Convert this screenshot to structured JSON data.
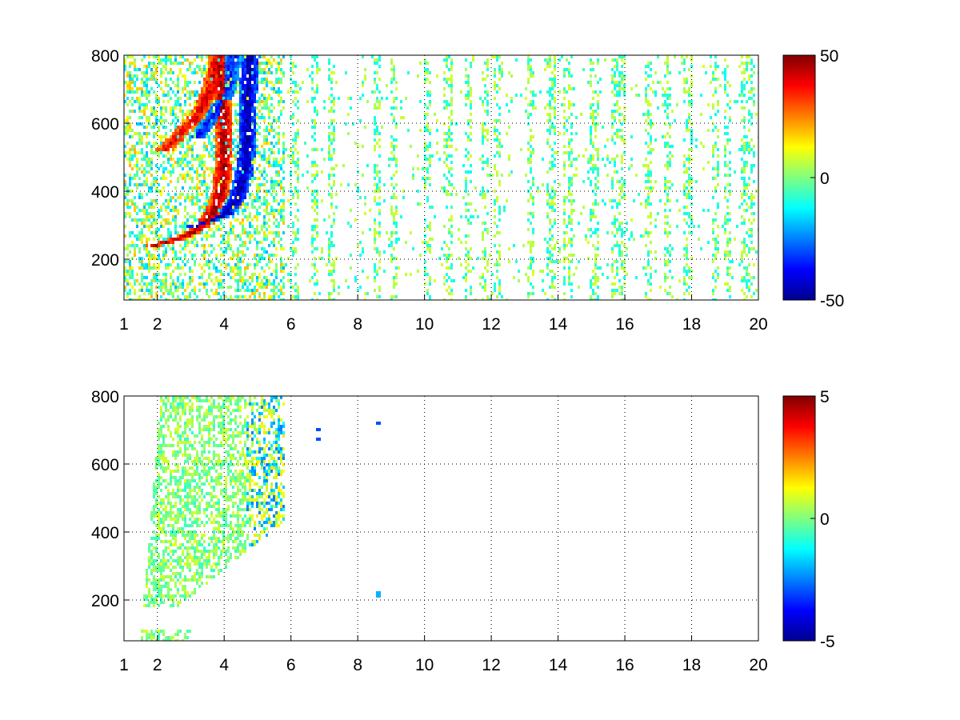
{
  "chart_data": [
    {
      "type": "heatmap",
      "title": "",
      "xlabel": "",
      "ylabel": "",
      "xlim": [
        1,
        20
      ],
      "ylim": [
        80,
        800
      ],
      "grid": true,
      "x_ticks": [
        "1",
        "2",
        "4",
        "6",
        "8",
        "10",
        "12",
        "14",
        "16",
        "18",
        "20"
      ],
      "y_ticks": [
        "200",
        "400",
        "600",
        "800"
      ],
      "colorbar": {
        "colormap": "jet",
        "range": [
          -50,
          50
        ],
        "ticks": [
          "50",
          "0",
          "-50"
        ]
      },
      "features": [
        {
          "desc": "positive ridge",
          "value": 45,
          "points": [
            [
              1.9,
              240
            ],
            [
              2.5,
              255
            ],
            [
              3.0,
              275
            ],
            [
              3.4,
              300
            ],
            [
              3.7,
              340
            ],
            [
              3.9,
              400
            ],
            [
              4.0,
              480
            ],
            [
              4.0,
              600
            ],
            [
              3.9,
              720
            ],
            [
              3.8,
              800
            ]
          ]
        },
        {
          "desc": "negative ridge",
          "value": -45,
          "points": [
            [
              3.0,
              290
            ],
            [
              3.5,
              310
            ],
            [
              4.0,
              330
            ],
            [
              4.4,
              380
            ],
            [
              4.6,
              450
            ],
            [
              4.7,
              550
            ],
            [
              4.7,
              650
            ],
            [
              4.8,
              800
            ]
          ]
        },
        {
          "desc": "upper positive ridge",
          "value": 40,
          "points": [
            [
              2.2,
              520
            ],
            [
              2.7,
              570
            ],
            [
              3.2,
              620
            ],
            [
              3.6,
              700
            ],
            [
              3.8,
              800
            ]
          ]
        },
        {
          "desc": "upper negative ridge",
          "value": -35,
          "points": [
            [
              3.2,
              560
            ],
            [
              3.7,
              620
            ],
            [
              4.1,
              700
            ],
            [
              4.3,
              800
            ]
          ]
        }
      ],
      "noise_columns_x": [
        6.1,
        6.7,
        7.2,
        8.6,
        9.1,
        10.1,
        10.7,
        11.3,
        11.8,
        12.2,
        13.2,
        13.8,
        14.3,
        15.1,
        15.7,
        15.9,
        16.7,
        17.3,
        17.9,
        18.7,
        19.1,
        19.6,
        19.8
      ]
    },
    {
      "type": "heatmap",
      "title": "",
      "xlabel": "",
      "ylabel": "",
      "xlim": [
        1,
        20
      ],
      "ylim": [
        80,
        800
      ],
      "grid": true,
      "x_ticks": [
        "1",
        "2",
        "4",
        "6",
        "8",
        "10",
        "12",
        "14",
        "16",
        "18",
        "20"
      ],
      "y_ticks": [
        "200",
        "400",
        "600",
        "800"
      ],
      "colorbar": {
        "colormap": "jet",
        "range": [
          -5,
          5
        ],
        "ticks": [
          "5",
          "0",
          "-5"
        ]
      },
      "region": {
        "desc": "values near zero",
        "x_range": [
          1.5,
          5.8
        ],
        "value_range": [
          -2.5,
          1.5
        ]
      },
      "isolated_points": [
        [
          6.8,
          700
        ],
        [
          6.8,
          675
        ],
        [
          8.6,
          720
        ],
        [
          8.6,
          215
        ]
      ]
    }
  ]
}
